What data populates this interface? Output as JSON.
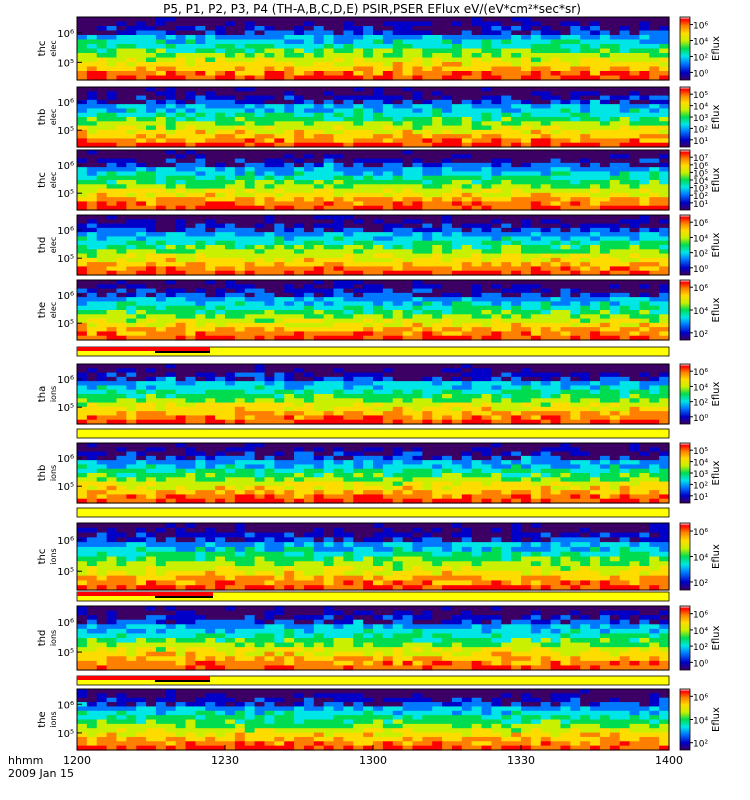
{
  "chart_data": {
    "type": "heatmap",
    "title": "P5, P1, P2, P3, P4 (TH-A,B,C,D,E) PSIR,PSER EFlux eV/(eV*cm²*sec*sr)",
    "x_label_lines": [
      "hhmm",
      "2009 Jan 15"
    ],
    "x_ticks": [
      "1200",
      "1230",
      "1300",
      "1330",
      "1400"
    ],
    "x_range": [
      "12:00",
      "14:00"
    ],
    "y_scale": "log",
    "colorbar_label": "Eflux",
    "colormap": [
      "#3c0064",
      "#0000c8",
      "#0078ff",
      "#00e6e6",
      "#00dc50",
      "#c8f000",
      "#ffdc00",
      "#ff8000",
      "#ff0000",
      "#ffffff"
    ],
    "panels": [
      {
        "label_lines": [
          "thc",
          "elec"
        ],
        "y_ticks": [
          "10⁶",
          "10⁵"
        ],
        "cbar_ticks": [
          "10⁶",
          "10⁴",
          "10²",
          "10⁰"
        ]
      },
      {
        "label_lines": [
          "thb",
          "elec"
        ],
        "y_ticks": [
          "10⁶",
          "10⁵"
        ],
        "cbar_ticks": [
          "10⁵",
          "10⁴",
          "10³",
          "10²",
          "10¹"
        ]
      },
      {
        "label_lines": [
          "thc",
          "elec"
        ],
        "y_ticks": [
          "10⁶",
          "10⁵"
        ],
        "cbar_ticks": [
          "10⁷",
          "10⁶",
          "10⁵",
          "10⁴",
          "10³",
          "10²",
          "10¹"
        ]
      },
      {
        "label_lines": [
          "thd",
          "elec"
        ],
        "y_ticks": [
          "10⁶",
          "10⁵"
        ],
        "cbar_ticks": [
          "10⁶",
          "10⁴",
          "10²",
          "10⁰"
        ]
      },
      {
        "label_lines": [
          "the",
          "elec"
        ],
        "y_ticks": [
          "10⁶",
          "10⁵"
        ],
        "cbar_ticks": [
          "10⁶",
          "10⁴",
          "10²"
        ]
      },
      {
        "label_lines": [
          "tha",
          "ions"
        ],
        "y_ticks": [
          "10⁶",
          "10⁵"
        ],
        "cbar_ticks": [
          "10⁶",
          "10⁴",
          "10²",
          "10⁰"
        ]
      },
      {
        "label_lines": [
          "thb",
          "ions"
        ],
        "y_ticks": [
          "10⁶",
          "10⁵"
        ],
        "cbar_ticks": [
          "10⁵",
          "10⁴",
          "10³",
          "10²",
          "10¹"
        ]
      },
      {
        "label_lines": [
          "thc",
          "ions"
        ],
        "y_ticks": [
          "10⁶",
          "10⁵"
        ],
        "cbar_ticks": [
          "10⁶",
          "10⁴",
          "10²"
        ]
      },
      {
        "label_lines": [
          "thd",
          "ions"
        ],
        "y_ticks": [
          "10⁶",
          "10⁵"
        ],
        "cbar_ticks": [
          "10⁶",
          "10⁴",
          "10²",
          "10⁰"
        ]
      },
      {
        "label_lines": [
          "the",
          "ions"
        ],
        "y_ticks": [
          "10⁶",
          "10⁵"
        ],
        "cbar_ticks": [
          "10⁶",
          "10⁴",
          "10²"
        ]
      }
    ]
  }
}
